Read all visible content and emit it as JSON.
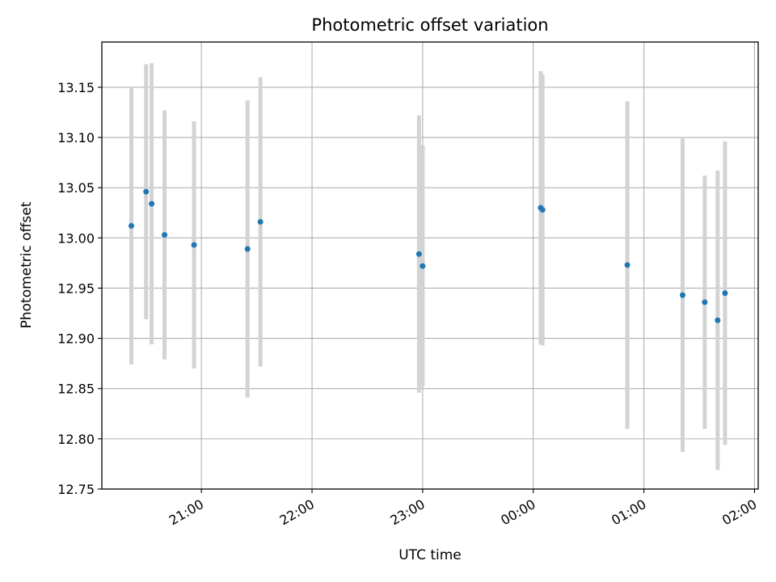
{
  "chart_data": {
    "type": "scatter",
    "title": "Photometric offset variation",
    "xlabel": "UTC time",
    "ylabel": "Photometric offset",
    "grid": true,
    "legend": "none",
    "x_type": "time",
    "xlim": [
      "20:06",
      "02:02"
    ],
    "ylim": [
      12.75,
      13.195
    ],
    "x_ticks": [
      "21:00",
      "22:00",
      "23:00",
      "00:00",
      "01:00",
      "02:00"
    ],
    "y_ticks": [
      12.75,
      12.8,
      12.85,
      12.9,
      12.95,
      13.0,
      13.05,
      13.1,
      13.15
    ],
    "y_tick_labels": [
      "12.75",
      "12.80",
      "12.85",
      "12.90",
      "12.95",
      "13.00",
      "13.05",
      "13.10",
      "13.15"
    ],
    "colors": {
      "marker": "#1f77b4",
      "errorbar": "#d3d3d3",
      "grid": "#b0b0b0"
    },
    "series": [
      {
        "points": [
          {
            "x": "20:22",
            "y": 13.012,
            "yerr": 0.138
          },
          {
            "x": "20:30",
            "y": 13.046,
            "yerr": 0.127
          },
          {
            "x": "20:33",
            "y": 13.034,
            "yerr": 0.14
          },
          {
            "x": "20:40",
            "y": 13.003,
            "yerr": 0.124
          },
          {
            "x": "20:56",
            "y": 12.993,
            "yerr": 0.123
          },
          {
            "x": "21:25",
            "y": 12.989,
            "yerr": 0.148
          },
          {
            "x": "21:32",
            "y": 13.016,
            "yerr": 0.144
          },
          {
            "x": "22:58",
            "y": 12.984,
            "yerr": 0.138
          },
          {
            "x": "23:00",
            "y": 12.972,
            "yerr": 0.12
          },
          {
            "x": "00:04",
            "y": 13.03,
            "yerr": 0.136
          },
          {
            "x": "00:05",
            "y": 13.028,
            "yerr": 0.135
          },
          {
            "x": "00:51",
            "y": 12.973,
            "yerr": 0.163
          },
          {
            "x": "01:21",
            "y": 12.943,
            "yerr": 0.156
          },
          {
            "x": "01:33",
            "y": 12.936,
            "yerr": 0.126
          },
          {
            "x": "01:40",
            "y": 12.918,
            "yerr": 0.149
          },
          {
            "x": "01:44",
            "y": 12.945,
            "yerr": 0.151
          }
        ]
      }
    ]
  }
}
